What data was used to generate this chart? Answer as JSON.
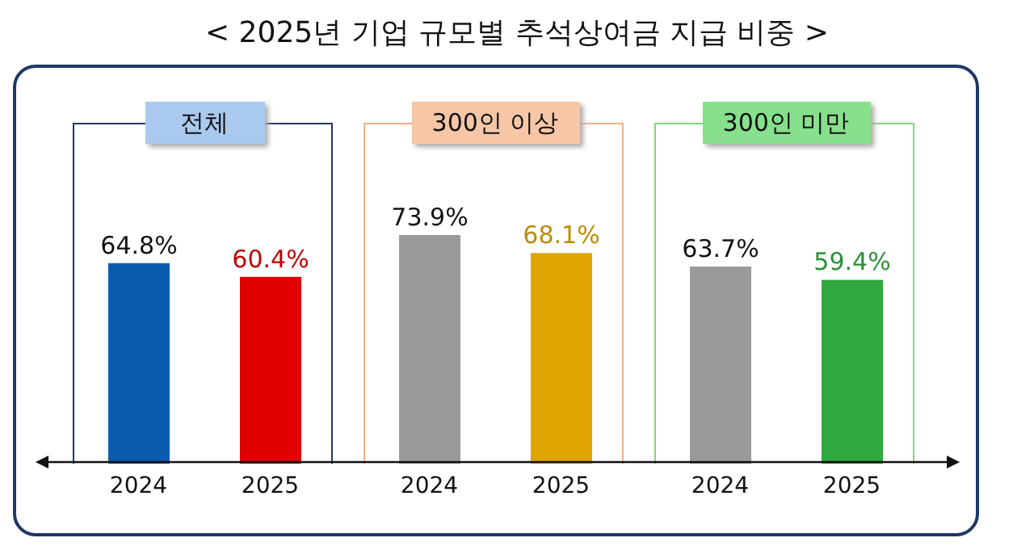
{
  "chart_data": [
    {
      "type": "bar",
      "title": "전체",
      "annotations": [
        "< 2025년 기업 규모별 추석상여금 지급 비중 >"
      ],
      "categories": [
        "2024",
        "2025"
      ],
      "values": [
        64.8,
        60.4
      ],
      "colors": [
        "#0a5cb0",
        "#e00000"
      ],
      "value_labels": [
        "64.8%",
        "60.4%"
      ]
    },
    {
      "type": "bar",
      "title": "300인 이상",
      "categories": [
        "2024",
        "2025"
      ],
      "values": [
        73.9,
        68.1
      ],
      "colors": [
        "#9a9a9a",
        "#e0a400"
      ],
      "value_labels": [
        "73.9%",
        "68.1%"
      ]
    },
    {
      "type": "bar",
      "title": "300인 미만",
      "categories": [
        "2024",
        "2025"
      ],
      "values": [
        63.7,
        59.4
      ],
      "colors": [
        "#9a9a9a",
        "#30a840"
      ],
      "value_labels": [
        "63.7%",
        "59.4%"
      ]
    }
  ]
}
